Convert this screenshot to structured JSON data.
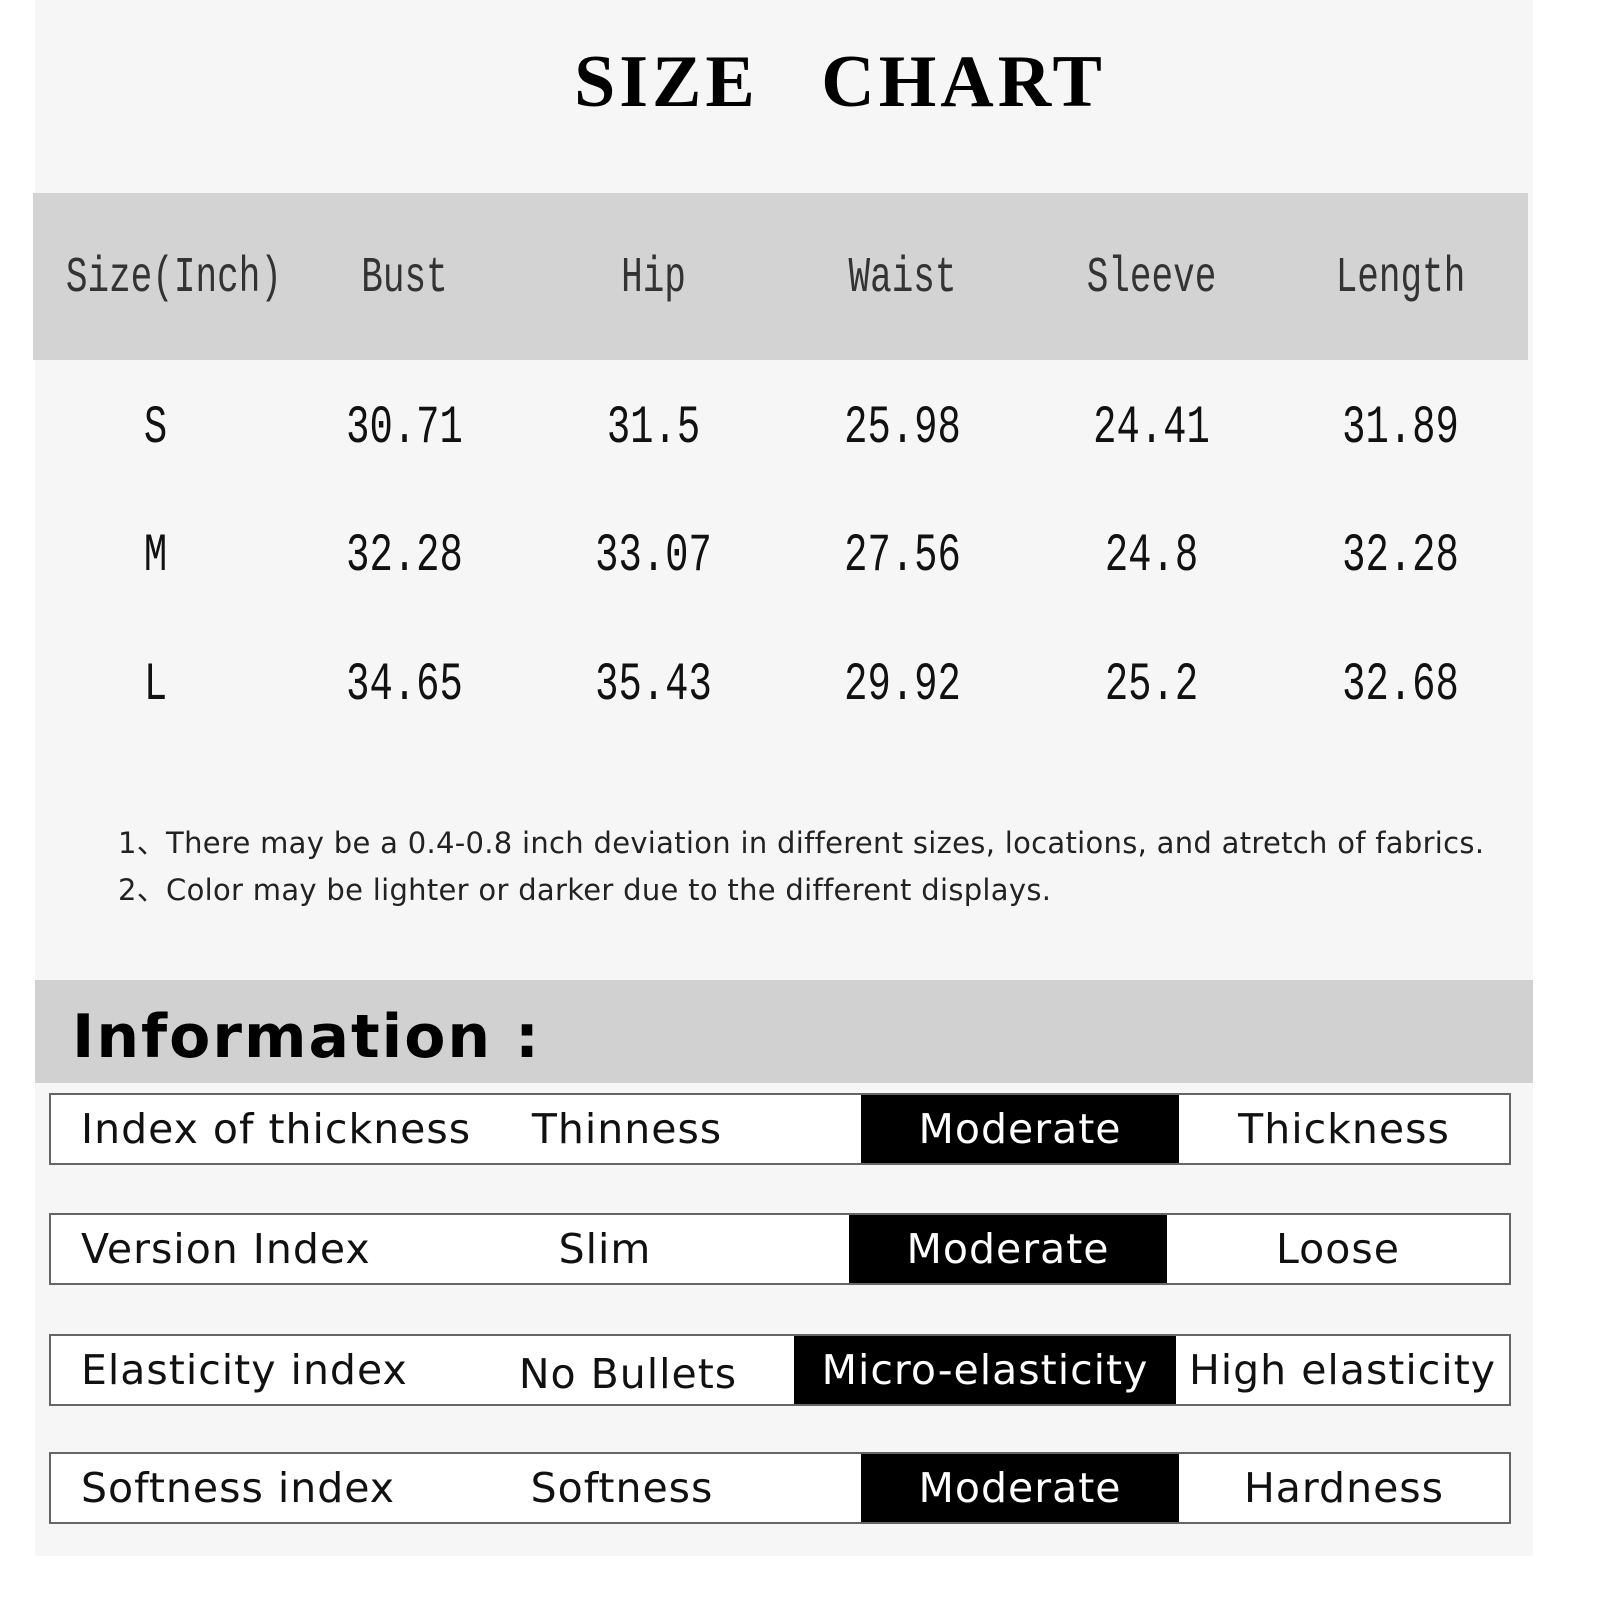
{
  "title": "SIZE CHART",
  "table": {
    "headers": [
      "Size(Inch)",
      "Bust",
      "Hip",
      "Waist",
      "Sleeve",
      "Length"
    ],
    "rows": [
      [
        "S",
        "30.71",
        "31.5",
        "25.98",
        "24.41",
        "31.89"
      ],
      [
        "M",
        "32.28",
        "33.07",
        "27.56",
        "24.8",
        "32.28"
      ],
      [
        "L",
        "34.65",
        "35.43",
        "29.92",
        "25.2",
        "32.68"
      ]
    ]
  },
  "notes": [
    "1、There may be a 0.4-0.8 inch deviation in different sizes, locations, and atretch of fabrics.",
    "2、Color may be lighter or darker due to the different displays."
  ],
  "information": {
    "title": "Information :",
    "rows": [
      {
        "label": "Index of thickness",
        "options": [
          "Thinness",
          "Moderate",
          "Thickness"
        ],
        "selected": "Moderate"
      },
      {
        "label": "Version Index",
        "options": [
          "Slim",
          "Moderate",
          "Loose"
        ],
        "selected": "Moderate"
      },
      {
        "label": "Elasticity index",
        "options": [
          "No Bullets",
          "Micro-elasticity",
          "High elasticity"
        ],
        "selected": "Micro-elasticity"
      },
      {
        "label": "Softness index",
        "options": [
          "Softness",
          "Moderate",
          "Hardness"
        ],
        "selected": "Moderate"
      }
    ]
  },
  "colors": {
    "header_gray": "#d3d3d3",
    "selected_bg": "#000000",
    "selected_text": "#ffffff"
  }
}
